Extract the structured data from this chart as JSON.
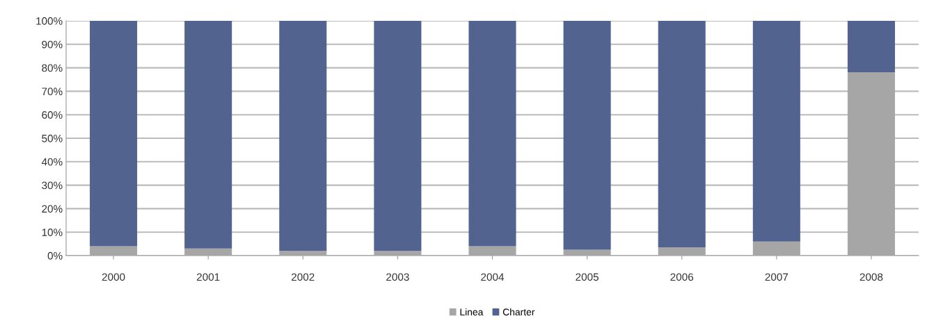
{
  "chart_data": {
    "type": "bar",
    "stacked": true,
    "categories": [
      "2000",
      "2001",
      "2002",
      "2003",
      "2004",
      "2005",
      "2006",
      "2007",
      "2008"
    ],
    "series": [
      {
        "name": "Linea",
        "color": "#a6a6a6",
        "values": [
          4,
          3,
          2,
          2,
          4,
          2.5,
          3.5,
          6,
          78
        ]
      },
      {
        "name": "Charter",
        "color": "#536390",
        "values": [
          96,
          97,
          98,
          98,
          96,
          97.5,
          96.5,
          94,
          22
        ]
      }
    ],
    "ylim": [
      0,
      100
    ],
    "yticks": [
      {
        "value": 0,
        "label": "0%"
      },
      {
        "value": 10,
        "label": "10%"
      },
      {
        "value": 20,
        "label": "20%"
      },
      {
        "value": 30,
        "label": "30%"
      },
      {
        "value": 40,
        "label": "40%"
      },
      {
        "value": 50,
        "label": "50%"
      },
      {
        "value": 60,
        "label": "60%"
      },
      {
        "value": 70,
        "label": "70%"
      },
      {
        "value": 80,
        "label": "80%"
      },
      {
        "value": 90,
        "label": "90%"
      },
      {
        "value": 100,
        "label": "100%"
      }
    ],
    "grid": "y",
    "legend": "bottom"
  }
}
